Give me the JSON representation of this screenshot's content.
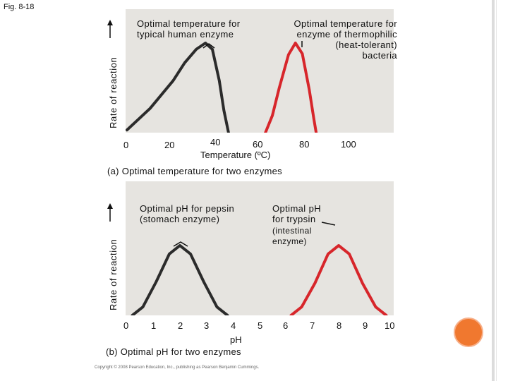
{
  "figure": {
    "label": "Fig. 8-18",
    "footer_credit": "Copyright © 2008 Pearson Education, Inc., publishing as Pearson Benjamin Cummings."
  },
  "colors": {
    "human_curve": "#2b2b2b",
    "heat_curve": "#d7262b",
    "pepsin_curve": "#2b2b2b",
    "trypsin_curve": "#d7262b",
    "panel_bg": "#e6e4e0",
    "accent_circle": "#f0782f"
  },
  "chart_data": [
    {
      "type": "line",
      "caption": "(a) Optimal temperature for two enzymes",
      "xlabel": "Temperature (ºC)",
      "ylabel": "Rate of reaction",
      "x_ticks": [
        "0",
        "20",
        "40",
        "60",
        "80",
        "100"
      ],
      "xlim": [
        0,
        100
      ],
      "annotations": {
        "human": "Optimal temperature for\ntypical human enzyme",
        "thermophilic": "Optimal temperature for\nenzyme of thermophilic\n(heat-tolerant)\nbacteria"
      },
      "series": [
        {
          "key": "human",
          "points": [
            [
              0,
              0.03
            ],
            [
              10,
              0.27
            ],
            [
              20,
              0.58
            ],
            [
              25,
              0.78
            ],
            [
              30,
              0.93
            ],
            [
              34,
              1.0
            ],
            [
              37,
              0.93
            ],
            [
              40,
              0.58
            ],
            [
              42,
              0.25
            ],
            [
              44,
              0.0
            ]
          ]
        },
        {
          "key": "thermophilic",
          "points": [
            [
              60,
              0.0
            ],
            [
              63,
              0.19
            ],
            [
              66,
              0.5
            ],
            [
              70,
              0.87
            ],
            [
              73,
              1.0
            ],
            [
              76,
              0.88
            ],
            [
              79,
              0.48
            ],
            [
              81,
              0.15
            ],
            [
              82,
              0.0
            ]
          ]
        }
      ]
    },
    {
      "type": "line",
      "caption": "(b) Optimal pH for two enzymes",
      "xlabel": "pH",
      "ylabel": "Rate of reaction",
      "x_ticks": [
        "0",
        "1",
        "2",
        "3",
        "4",
        "5",
        "6",
        "7",
        "8",
        "9",
        "10"
      ],
      "xlim": [
        0,
        10
      ],
      "annotations": {
        "pepsin": "Optimal pH for pepsin\n(stomach enzyme)",
        "trypsin_title": "Optimal pH\nfor trypsin",
        "trypsin_note": "(intestinal\nenzyme)"
      },
      "series": [
        {
          "key": "pepsin",
          "points": [
            [
              0.2,
              0.0
            ],
            [
              0.6,
              0.12
            ],
            [
              1.1,
              0.48
            ],
            [
              1.6,
              0.88
            ],
            [
              2.0,
              1.0
            ],
            [
              2.4,
              0.88
            ],
            [
              2.9,
              0.48
            ],
            [
              3.4,
              0.12
            ],
            [
              3.8,
              0.0
            ]
          ]
        },
        {
          "key": "trypsin",
          "points": [
            [
              6.2,
              0.0
            ],
            [
              6.6,
              0.12
            ],
            [
              7.1,
              0.46
            ],
            [
              7.6,
              0.88
            ],
            [
              8.0,
              1.0
            ],
            [
              8.4,
              0.88
            ],
            [
              8.9,
              0.46
            ],
            [
              9.4,
              0.12
            ],
            [
              9.8,
              0.0
            ]
          ]
        }
      ]
    }
  ]
}
